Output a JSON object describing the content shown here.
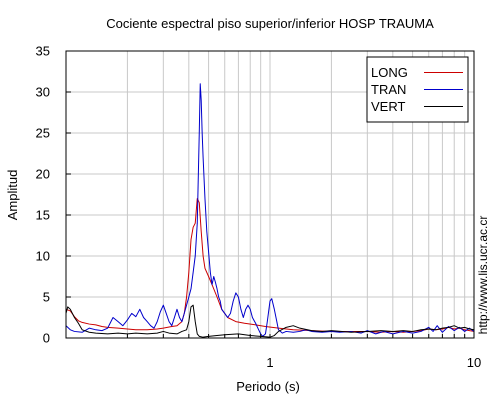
{
  "chart_data": {
    "type": "line",
    "title": "Cociente espectral piso superior/inferior  HOSP TRAUMA",
    "xlabel": "Periodo (s)",
    "ylabel": "Amplitud",
    "side_text": "http://www.lis.ucr.ac.cr",
    "x_scale": "log",
    "xlim": [
      0.1,
      10
    ],
    "ylim": [
      0,
      35
    ],
    "x_tick_labels": [
      {
        "value": 1,
        "label": "1"
      },
      {
        "value": 10,
        "label": "10"
      }
    ],
    "y_ticks": [
      0,
      5,
      10,
      15,
      20,
      25,
      30,
      35
    ],
    "grid": true,
    "legend_position": "top-right",
    "series": [
      {
        "name": "LONG",
        "color": "#cc0000",
        "points": [
          [
            0.1,
            3.5
          ],
          [
            0.105,
            3.3
          ],
          [
            0.11,
            2.6
          ],
          [
            0.115,
            2.1
          ],
          [
            0.12,
            1.9
          ],
          [
            0.13,
            1.7
          ],
          [
            0.14,
            1.6
          ],
          [
            0.15,
            1.4
          ],
          [
            0.16,
            1.3
          ],
          [
            0.18,
            1.2
          ],
          [
            0.2,
            1.1
          ],
          [
            0.22,
            1.0
          ],
          [
            0.25,
            1.0
          ],
          [
            0.28,
            1.1
          ],
          [
            0.3,
            1.2
          ],
          [
            0.33,
            1.4
          ],
          [
            0.35,
            1.5
          ],
          [
            0.37,
            2.0
          ],
          [
            0.38,
            3.0
          ],
          [
            0.39,
            5.0
          ],
          [
            0.4,
            8.0
          ],
          [
            0.41,
            12.0
          ],
          [
            0.42,
            13.5
          ],
          [
            0.43,
            14.0
          ],
          [
            0.44,
            17.0
          ],
          [
            0.45,
            16.5
          ],
          [
            0.46,
            13.0
          ],
          [
            0.47,
            10.0
          ],
          [
            0.48,
            8.5
          ],
          [
            0.5,
            7.5
          ],
          [
            0.52,
            6.5
          ],
          [
            0.55,
            5.0
          ],
          [
            0.58,
            3.5
          ],
          [
            0.62,
            2.5
          ],
          [
            0.68,
            2.0
          ],
          [
            0.75,
            1.8
          ],
          [
            0.85,
            1.6
          ],
          [
            0.95,
            1.4
          ],
          [
            1.1,
            1.2
          ],
          [
            1.3,
            1.0
          ],
          [
            1.6,
            0.9
          ],
          [
            2.0,
            0.8
          ],
          [
            2.5,
            0.8
          ],
          [
            3.0,
            0.8
          ],
          [
            3.5,
            0.7
          ],
          [
            4.0,
            0.8
          ],
          [
            4.5,
            0.7
          ],
          [
            5.0,
            0.8
          ],
          [
            5.5,
            0.9
          ],
          [
            6.0,
            1.1
          ],
          [
            6.5,
            1.0
          ],
          [
            7.0,
            1.1
          ],
          [
            7.5,
            1.3
          ],
          [
            8.0,
            1.1
          ],
          [
            8.5,
            1.2
          ],
          [
            9.0,
            1.0
          ],
          [
            9.5,
            0.9
          ],
          [
            10.0,
            0.8
          ]
        ]
      },
      {
        "name": "TRAN",
        "color": "#0000cc",
        "points": [
          [
            0.1,
            1.5
          ],
          [
            0.105,
            1.0
          ],
          [
            0.11,
            0.8
          ],
          [
            0.12,
            0.7
          ],
          [
            0.13,
            1.2
          ],
          [
            0.14,
            1.0
          ],
          [
            0.15,
            0.9
          ],
          [
            0.16,
            1.2
          ],
          [
            0.17,
            2.5
          ],
          [
            0.18,
            2.0
          ],
          [
            0.19,
            1.5
          ],
          [
            0.2,
            2.2
          ],
          [
            0.21,
            3.0
          ],
          [
            0.22,
            2.6
          ],
          [
            0.23,
            3.5
          ],
          [
            0.24,
            2.5
          ],
          [
            0.25,
            2.0
          ],
          [
            0.26,
            1.5
          ],
          [
            0.27,
            1.2
          ],
          [
            0.28,
            2.0
          ],
          [
            0.29,
            3.2
          ],
          [
            0.3,
            4.0
          ],
          [
            0.31,
            3.0
          ],
          [
            0.32,
            2.0
          ],
          [
            0.33,
            1.5
          ],
          [
            0.34,
            2.5
          ],
          [
            0.35,
            3.5
          ],
          [
            0.36,
            2.5
          ],
          [
            0.37,
            2.0
          ],
          [
            0.38,
            3.0
          ],
          [
            0.4,
            5.0
          ],
          [
            0.41,
            6.0
          ],
          [
            0.42,
            8.0
          ],
          [
            0.43,
            10.0
          ],
          [
            0.44,
            14.0
          ],
          [
            0.45,
            25.0
          ],
          [
            0.455,
            31.0
          ],
          [
            0.46,
            29.0
          ],
          [
            0.465,
            25.0
          ],
          [
            0.47,
            22.0
          ],
          [
            0.48,
            17.0
          ],
          [
            0.49,
            13.0
          ],
          [
            0.5,
            10.5
          ],
          [
            0.51,
            8.0
          ],
          [
            0.52,
            6.5
          ],
          [
            0.53,
            7.5
          ],
          [
            0.54,
            6.8
          ],
          [
            0.55,
            6.0
          ],
          [
            0.56,
            5.0
          ],
          [
            0.57,
            4.5
          ],
          [
            0.58,
            3.5
          ],
          [
            0.6,
            3.0
          ],
          [
            0.62,
            2.5
          ],
          [
            0.64,
            3.0
          ],
          [
            0.66,
            4.5
          ],
          [
            0.68,
            5.5
          ],
          [
            0.7,
            5.0
          ],
          [
            0.72,
            3.5
          ],
          [
            0.74,
            2.5
          ],
          [
            0.76,
            3.5
          ],
          [
            0.78,
            4.0
          ],
          [
            0.8,
            3.5
          ],
          [
            0.82,
            2.5
          ],
          [
            0.85,
            1.8
          ],
          [
            0.88,
            1.0
          ],
          [
            0.9,
            0.5
          ],
          [
            0.92,
            0.2
          ],
          [
            0.95,
            0.5
          ],
          [
            0.97,
            2.0
          ],
          [
            1.0,
            4.5
          ],
          [
            1.02,
            4.8
          ],
          [
            1.05,
            3.5
          ],
          [
            1.08,
            2.0
          ],
          [
            1.1,
            1.0
          ],
          [
            1.15,
            0.6
          ],
          [
            1.2,
            0.8
          ],
          [
            1.3,
            0.7
          ],
          [
            1.4,
            0.8
          ],
          [
            1.5,
            1.0
          ],
          [
            1.6,
            0.8
          ],
          [
            1.8,
            0.7
          ],
          [
            2.0,
            0.8
          ],
          [
            2.2,
            0.7
          ],
          [
            2.5,
            0.8
          ],
          [
            2.8,
            0.6
          ],
          [
            3.0,
            0.9
          ],
          [
            3.3,
            0.5
          ],
          [
            3.6,
            0.8
          ],
          [
            4.0,
            0.5
          ],
          [
            4.5,
            0.8
          ],
          [
            5.0,
            0.6
          ],
          [
            5.5,
            0.8
          ],
          [
            6.0,
            1.3
          ],
          [
            6.3,
            0.8
          ],
          [
            6.6,
            1.5
          ],
          [
            7.0,
            0.7
          ],
          [
            7.5,
            1.4
          ],
          [
            8.0,
            0.9
          ],
          [
            8.5,
            1.3
          ],
          [
            9.0,
            0.8
          ],
          [
            9.5,
            1.2
          ],
          [
            10.0,
            0.8
          ]
        ]
      },
      {
        "name": "VERT",
        "color": "#000000",
        "points": [
          [
            0.1,
            3.0
          ],
          [
            0.102,
            3.8
          ],
          [
            0.105,
            3.5
          ],
          [
            0.11,
            2.5
          ],
          [
            0.115,
            1.8
          ],
          [
            0.12,
            1.0
          ],
          [
            0.13,
            0.7
          ],
          [
            0.14,
            0.6
          ],
          [
            0.16,
            0.5
          ],
          [
            0.18,
            0.6
          ],
          [
            0.2,
            0.5
          ],
          [
            0.22,
            0.6
          ],
          [
            0.25,
            0.5
          ],
          [
            0.28,
            0.6
          ],
          [
            0.3,
            0.8
          ],
          [
            0.32,
            0.6
          ],
          [
            0.35,
            0.5
          ],
          [
            0.37,
            0.8
          ],
          [
            0.39,
            1.0
          ],
          [
            0.4,
            2.0
          ],
          [
            0.41,
            3.8
          ],
          [
            0.42,
            4.0
          ],
          [
            0.43,
            2.0
          ],
          [
            0.44,
            0.5
          ],
          [
            0.45,
            0.2
          ],
          [
            0.47,
            0.1
          ],
          [
            0.5,
            0.2
          ],
          [
            0.55,
            0.3
          ],
          [
            0.6,
            0.4
          ],
          [
            0.7,
            0.5
          ],
          [
            0.8,
            0.3
          ],
          [
            0.9,
            0.2
          ],
          [
            1.0,
            0.1
          ],
          [
            1.05,
            0.3
          ],
          [
            1.1,
            0.8
          ],
          [
            1.2,
            1.3
          ],
          [
            1.3,
            1.5
          ],
          [
            1.4,
            1.2
          ],
          [
            1.6,
            0.9
          ],
          [
            1.8,
            0.8
          ],
          [
            2.0,
            0.9
          ],
          [
            2.5,
            0.7
          ],
          [
            3.0,
            0.8
          ],
          [
            3.5,
            0.9
          ],
          [
            4.0,
            0.8
          ],
          [
            4.5,
            0.9
          ],
          [
            5.0,
            0.8
          ],
          [
            5.5,
            1.0
          ],
          [
            6.0,
            1.1
          ],
          [
            6.5,
            1.0
          ],
          [
            7.0,
            1.2
          ],
          [
            7.5,
            1.3
          ],
          [
            8.0,
            1.5
          ],
          [
            8.5,
            1.2
          ],
          [
            9.0,
            1.3
          ],
          [
            9.5,
            1.1
          ],
          [
            10.0,
            1.0
          ]
        ]
      }
    ]
  }
}
